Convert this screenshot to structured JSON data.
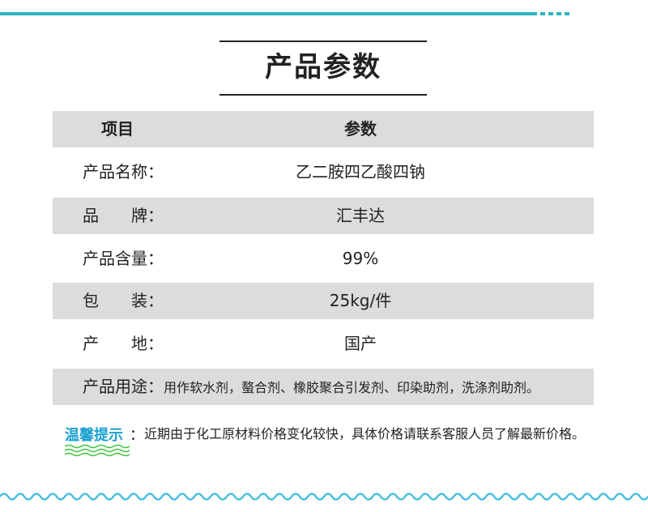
{
  "title": "产品参数",
  "header": {
    "col1": "项目",
    "col2": "参数"
  },
  "rows": [
    {
      "label": "产品名称：",
      "value": "乙二胺四乙酸四钠"
    },
    {
      "label": "品　　牌：",
      "value": "汇丰达"
    },
    {
      "label": "产品含量：",
      "value": "99%"
    },
    {
      "label": "包　　装：",
      "value": "25kg/件"
    },
    {
      "label": "产　　地：",
      "value": "国产"
    }
  ],
  "usage": {
    "label": "产品用途：",
    "value": "用作软水剂，螯合剂、橡胶聚合引发剂、印染助剂，洗涤剂助剂。"
  },
  "tip": {
    "label": "温馨提示",
    "colon": "：",
    "text": "近期由于化工原材料价格变化较快，具体价格请联系客服人员了解最新价格。"
  },
  "colors": {
    "accent": "#2bb5c0",
    "tip": "#1aa0d0",
    "row_gray": "#dcdcdc",
    "wave_green": "#3cc43c"
  }
}
